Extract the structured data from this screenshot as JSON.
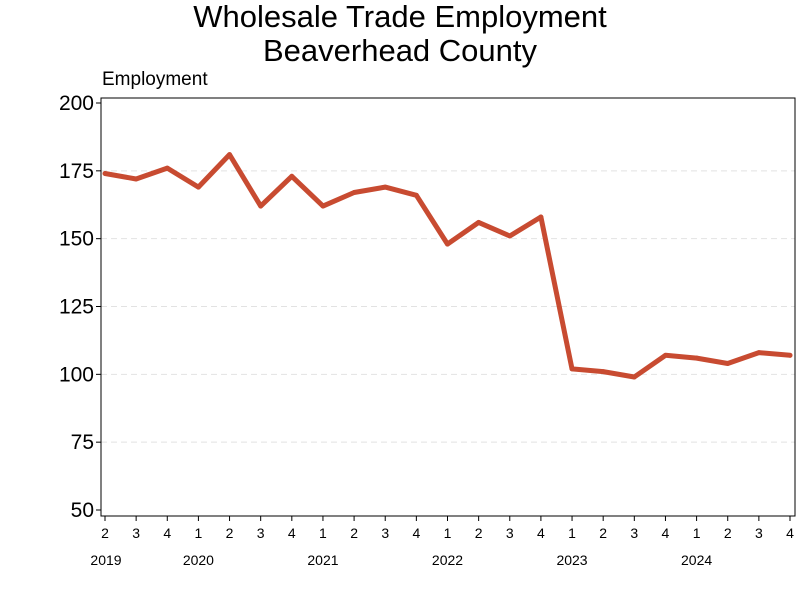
{
  "chart_data": {
    "type": "line",
    "title": "Wholesale Trade Employment",
    "subtitle": "Beaverhead County",
    "ylabel": "Employment",
    "ylim": [
      50,
      200
    ],
    "yticks": [
      50,
      75,
      100,
      125,
      150,
      175,
      200
    ],
    "grid": true,
    "series_color": "#c84b31",
    "quarters": [
      "2",
      "3",
      "4",
      "1",
      "2",
      "3",
      "4",
      "1",
      "2",
      "3",
      "4",
      "1",
      "2",
      "3",
      "4",
      "1",
      "2",
      "3",
      "4",
      "1",
      "2",
      "3",
      "4"
    ],
    "years": [
      {
        "label": "2019",
        "index": 0
      },
      {
        "label": "2020",
        "index": 3
      },
      {
        "label": "2021",
        "index": 7
      },
      {
        "label": "2022",
        "index": 11
      },
      {
        "label": "2023",
        "index": 15
      },
      {
        "label": "2024",
        "index": 19
      }
    ],
    "series": [
      {
        "values": [
          174,
          172,
          176,
          169,
          181,
          162,
          173,
          162,
          167,
          169,
          166,
          148,
          156,
          151,
          158,
          102,
          101,
          99,
          107,
          106,
          104,
          108,
          107
        ]
      }
    ]
  }
}
